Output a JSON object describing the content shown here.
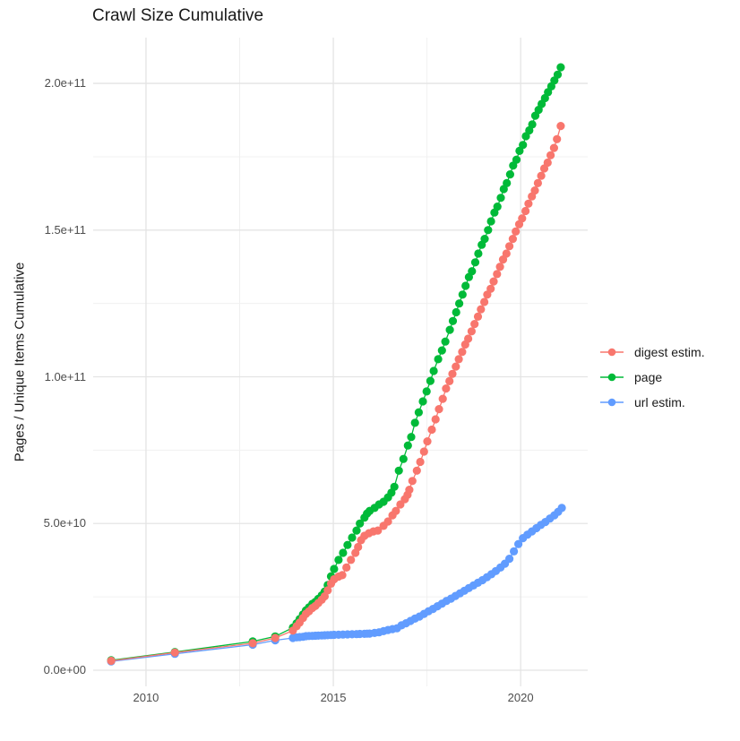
{
  "title": "Crawl Size Cumulative",
  "y_axis_title": "Pages / Unique Items Cumulative",
  "legend": {
    "position": "right",
    "items": [
      {
        "label": "digest estim.",
        "color": "#F8766D"
      },
      {
        "label": "page",
        "color": "#00BA38"
      },
      {
        "label": "url estim.",
        "color": "#619CFF"
      }
    ]
  },
  "colors": {
    "digest": "#F8766D",
    "page": "#00BA38",
    "url": "#619CFF",
    "grid_major": "#E4E4E4",
    "grid_minor": "#F0F0F0",
    "tick_text": "#4d4d4d",
    "text": "#1a1a1a",
    "background": "#ffffff"
  },
  "chart_data": {
    "type": "scatter",
    "title": "Crawl Size Cumulative",
    "xlabel": "",
    "ylabel": "Pages / Unique Items Cumulative",
    "grid": true,
    "legend_position": "right",
    "value_unit": 1000000000.0,
    "x_domain": [
      2008.59,
      2021.79
    ],
    "y_domain_billions": [
      -5.5,
      215.6
    ],
    "x_ticks": [
      {
        "label": "2010",
        "value": 2010
      },
      {
        "label": "2015",
        "value": 2015
      },
      {
        "label": "2020",
        "value": 2020
      }
    ],
    "x_minor": [
      2012.5,
      2017.5
    ],
    "y_ticks": [
      {
        "label": "0.0e+00",
        "value": 0
      },
      {
        "label": "5.0e+10",
        "value": 50
      },
      {
        "label": "1.0e+11",
        "value": 100
      },
      {
        "label": "1.5e+11",
        "value": 150
      },
      {
        "label": "2.0e+11",
        "value": 200
      }
    ],
    "y_minor": [
      25,
      75,
      125,
      175
    ],
    "draw_order": [
      "url estim.",
      "page",
      "digest estim."
    ],
    "series": [
      {
        "name": "digest estim.",
        "color": "#F8766D",
        "points": [
          [
            2009.07,
            3.2
          ],
          [
            2010.77,
            6.0
          ],
          [
            2012.85,
            9.2
          ],
          [
            2013.45,
            11.0
          ],
          [
            2013.92,
            13.5
          ],
          [
            2014.02,
            15.0
          ],
          [
            2014.1,
            16.2
          ],
          [
            2014.19,
            17.8
          ],
          [
            2014.27,
            19.2
          ],
          [
            2014.35,
            20.1
          ],
          [
            2014.44,
            21.2
          ],
          [
            2014.52,
            21.9
          ],
          [
            2014.6,
            22.9
          ],
          [
            2014.69,
            24.0
          ],
          [
            2014.77,
            25.2
          ],
          [
            2014.85,
            27.2
          ],
          [
            2014.94,
            29.5
          ],
          [
            2015.02,
            31.0
          ],
          [
            2015.14,
            31.9
          ],
          [
            2015.24,
            32.4
          ],
          [
            2015.35,
            35.0
          ],
          [
            2015.47,
            37.6
          ],
          [
            2015.59,
            40.0
          ],
          [
            2015.66,
            42.0
          ],
          [
            2015.74,
            44.3
          ],
          [
            2015.83,
            45.8
          ],
          [
            2015.95,
            46.7
          ],
          [
            2016.07,
            47.3
          ],
          [
            2016.19,
            47.6
          ],
          [
            2016.34,
            49.2
          ],
          [
            2016.46,
            50.7
          ],
          [
            2016.58,
            52.8
          ],
          [
            2016.67,
            54.3
          ],
          [
            2016.79,
            56.5
          ],
          [
            2016.91,
            58.3
          ],
          [
            2016.98,
            59.8
          ],
          [
            2017.03,
            61.5
          ],
          [
            2017.11,
            64.5
          ],
          [
            2017.23,
            68.0
          ],
          [
            2017.32,
            71.0
          ],
          [
            2017.42,
            74.5
          ],
          [
            2017.51,
            78.0
          ],
          [
            2017.63,
            82.0
          ],
          [
            2017.73,
            85.5
          ],
          [
            2017.82,
            89.0
          ],
          [
            2017.92,
            92.5
          ],
          [
            2018.01,
            96.0
          ],
          [
            2018.1,
            98.5
          ],
          [
            2018.18,
            101.0
          ],
          [
            2018.27,
            103.5
          ],
          [
            2018.35,
            106.0
          ],
          [
            2018.44,
            108.5
          ],
          [
            2018.52,
            111.0
          ],
          [
            2018.6,
            113.0
          ],
          [
            2018.69,
            115.5
          ],
          [
            2018.77,
            118.0
          ],
          [
            2018.86,
            120.5
          ],
          [
            2018.94,
            123.0
          ],
          [
            2019.03,
            125.5
          ],
          [
            2019.11,
            128.0
          ],
          [
            2019.2,
            130.0
          ],
          [
            2019.28,
            132.5
          ],
          [
            2019.37,
            135.0
          ],
          [
            2019.45,
            137.5
          ],
          [
            2019.53,
            140.0
          ],
          [
            2019.62,
            142.0
          ],
          [
            2019.7,
            144.5
          ],
          [
            2019.79,
            147.0
          ],
          [
            2019.87,
            149.5
          ],
          [
            2019.96,
            152.0
          ],
          [
            2020.04,
            154.0
          ],
          [
            2020.13,
            156.5
          ],
          [
            2020.21,
            159.0
          ],
          [
            2020.3,
            161.5
          ],
          [
            2020.38,
            163.5
          ],
          [
            2020.46,
            166.0
          ],
          [
            2020.55,
            168.5
          ],
          [
            2020.63,
            171.0
          ],
          [
            2020.72,
            173.0
          ],
          [
            2020.8,
            175.5
          ],
          [
            2020.89,
            178.0
          ],
          [
            2020.97,
            181.0
          ],
          [
            2021.07,
            185.5
          ]
        ]
      },
      {
        "name": "page",
        "color": "#00BA38",
        "points": [
          [
            2009.07,
            3.4
          ],
          [
            2010.77,
            6.2
          ],
          [
            2012.85,
            9.8
          ],
          [
            2013.45,
            11.5
          ],
          [
            2013.92,
            14.5
          ],
          [
            2014.02,
            16.0
          ],
          [
            2014.1,
            17.4
          ],
          [
            2014.19,
            19.0
          ],
          [
            2014.27,
            20.4
          ],
          [
            2014.35,
            21.4
          ],
          [
            2014.44,
            22.6
          ],
          [
            2014.52,
            23.3
          ],
          [
            2014.6,
            24.3
          ],
          [
            2014.69,
            25.5
          ],
          [
            2014.77,
            26.8
          ],
          [
            2014.85,
            29.0
          ],
          [
            2014.94,
            32.0
          ],
          [
            2015.02,
            34.5
          ],
          [
            2015.14,
            37.6
          ],
          [
            2015.26,
            40.0
          ],
          [
            2015.38,
            42.7
          ],
          [
            2015.5,
            45.2
          ],
          [
            2015.62,
            47.6
          ],
          [
            2015.71,
            50.0
          ],
          [
            2015.83,
            52.0
          ],
          [
            2015.9,
            53.4
          ],
          [
            2015.97,
            54.3
          ],
          [
            2016.1,
            55.3
          ],
          [
            2016.22,
            56.5
          ],
          [
            2016.34,
            57.4
          ],
          [
            2016.46,
            58.9
          ],
          [
            2016.55,
            60.5
          ],
          [
            2016.63,
            62.5
          ],
          [
            2016.75,
            68.0
          ],
          [
            2016.87,
            72.0
          ],
          [
            2016.99,
            76.6
          ],
          [
            2017.08,
            79.5
          ],
          [
            2017.18,
            84.3
          ],
          [
            2017.28,
            87.9
          ],
          [
            2017.39,
            91.6
          ],
          [
            2017.49,
            95.0
          ],
          [
            2017.59,
            98.6
          ],
          [
            2017.68,
            102.0
          ],
          [
            2017.8,
            106.0
          ],
          [
            2017.9,
            109.0
          ],
          [
            2017.99,
            112.0
          ],
          [
            2018.11,
            116.0
          ],
          [
            2018.19,
            119.0
          ],
          [
            2018.28,
            122.0
          ],
          [
            2018.36,
            125.0
          ],
          [
            2018.45,
            128.0
          ],
          [
            2018.53,
            131.0
          ],
          [
            2018.62,
            134.0
          ],
          [
            2018.7,
            136.0
          ],
          [
            2018.79,
            139.0
          ],
          [
            2018.87,
            142.0
          ],
          [
            2018.96,
            145.0
          ],
          [
            2019.04,
            147.0
          ],
          [
            2019.13,
            150.0
          ],
          [
            2019.21,
            153.0
          ],
          [
            2019.3,
            156.0
          ],
          [
            2019.38,
            158.0
          ],
          [
            2019.47,
            161.0
          ],
          [
            2019.55,
            164.0
          ],
          [
            2019.63,
            166.0
          ],
          [
            2019.72,
            169.0
          ],
          [
            2019.8,
            172.0
          ],
          [
            2019.89,
            174.0
          ],
          [
            2019.97,
            177.0
          ],
          [
            2020.06,
            179.0
          ],
          [
            2020.14,
            182.0
          ],
          [
            2020.23,
            184.0
          ],
          [
            2020.31,
            186.0
          ],
          [
            2020.39,
            189.0
          ],
          [
            2020.48,
            191.0
          ],
          [
            2020.56,
            193.0
          ],
          [
            2020.65,
            195.0
          ],
          [
            2020.73,
            197.0
          ],
          [
            2020.82,
            199.0
          ],
          [
            2020.9,
            201.0
          ],
          [
            2020.99,
            203.0
          ],
          [
            2021.07,
            205.5
          ]
        ]
      },
      {
        "name": "url estim.",
        "color": "#619CFF",
        "points": [
          [
            2009.07,
            3.0
          ],
          [
            2010.77,
            5.6
          ],
          [
            2012.85,
            8.7
          ],
          [
            2013.45,
            10.2
          ],
          [
            2013.92,
            11.0
          ],
          [
            2014.02,
            11.2
          ],
          [
            2014.1,
            11.3
          ],
          [
            2014.19,
            11.4
          ],
          [
            2014.27,
            11.6
          ],
          [
            2014.35,
            11.65
          ],
          [
            2014.44,
            11.7
          ],
          [
            2014.52,
            11.75
          ],
          [
            2014.6,
            11.8
          ],
          [
            2014.69,
            11.85
          ],
          [
            2014.77,
            11.9
          ],
          [
            2014.85,
            11.95
          ],
          [
            2014.94,
            12.0
          ],
          [
            2015.02,
            12.05
          ],
          [
            2015.14,
            12.1
          ],
          [
            2015.26,
            12.15
          ],
          [
            2015.38,
            12.2
          ],
          [
            2015.5,
            12.25
          ],
          [
            2015.62,
            12.3
          ],
          [
            2015.71,
            12.35
          ],
          [
            2015.83,
            12.4
          ],
          [
            2015.9,
            12.45
          ],
          [
            2015.97,
            12.5
          ],
          [
            2016.1,
            12.7
          ],
          [
            2016.22,
            12.9
          ],
          [
            2016.34,
            13.3
          ],
          [
            2016.46,
            13.7
          ],
          [
            2016.58,
            14.0
          ],
          [
            2016.7,
            14.3
          ],
          [
            2016.82,
            15.3
          ],
          [
            2016.94,
            16.0
          ],
          [
            2017.06,
            16.8
          ],
          [
            2017.18,
            17.6
          ],
          [
            2017.3,
            18.3
          ],
          [
            2017.42,
            19.2
          ],
          [
            2017.54,
            20.1
          ],
          [
            2017.66,
            20.9
          ],
          [
            2017.78,
            21.8
          ],
          [
            2017.9,
            22.7
          ],
          [
            2018.02,
            23.6
          ],
          [
            2018.14,
            24.4
          ],
          [
            2018.26,
            25.3
          ],
          [
            2018.38,
            26.2
          ],
          [
            2018.5,
            27.1
          ],
          [
            2018.62,
            28.0
          ],
          [
            2018.74,
            28.9
          ],
          [
            2018.86,
            29.8
          ],
          [
            2018.98,
            30.7
          ],
          [
            2019.1,
            31.7
          ],
          [
            2019.22,
            32.7
          ],
          [
            2019.34,
            33.8
          ],
          [
            2019.46,
            35.0
          ],
          [
            2019.58,
            36.3
          ],
          [
            2019.7,
            38.0
          ],
          [
            2019.82,
            40.5
          ],
          [
            2019.94,
            43.0
          ],
          [
            2020.06,
            45.0
          ],
          [
            2020.18,
            46.2
          ],
          [
            2020.3,
            47.3
          ],
          [
            2020.42,
            48.4
          ],
          [
            2020.54,
            49.5
          ],
          [
            2020.66,
            50.5
          ],
          [
            2020.78,
            51.7
          ],
          [
            2020.9,
            52.8
          ],
          [
            2021.0,
            54.0
          ],
          [
            2021.1,
            55.3
          ]
        ]
      }
    ]
  }
}
